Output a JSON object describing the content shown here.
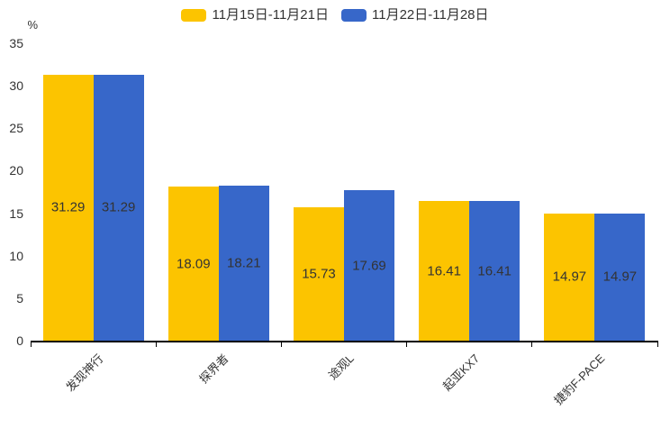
{
  "chart_data": {
    "type": "bar",
    "title": "",
    "unit_label": "%",
    "categories": [
      "发现神行",
      "探界者",
      "途观L",
      "起亚KX7",
      "捷豹F-PACE"
    ],
    "series": [
      {
        "name": "11月15日-11月21日",
        "color": "#FCC400",
        "values": [
          31.29,
          18.09,
          15.73,
          16.41,
          14.97
        ]
      },
      {
        "name": "11月22日-11月28日",
        "color": "#3767C9",
        "values": [
          31.29,
          18.21,
          17.69,
          16.41,
          14.97
        ]
      }
    ],
    "ylim": [
      0,
      35
    ],
    "yticks": [
      0,
      5,
      10,
      15,
      20,
      25,
      30,
      35
    ],
    "grid": false,
    "legend_position": "top",
    "value_labels": "inside-center",
    "value_label_format": "2-decimals",
    "axis_color": "#000000",
    "text_color": "#333333",
    "background_color": "#ffffff"
  }
}
